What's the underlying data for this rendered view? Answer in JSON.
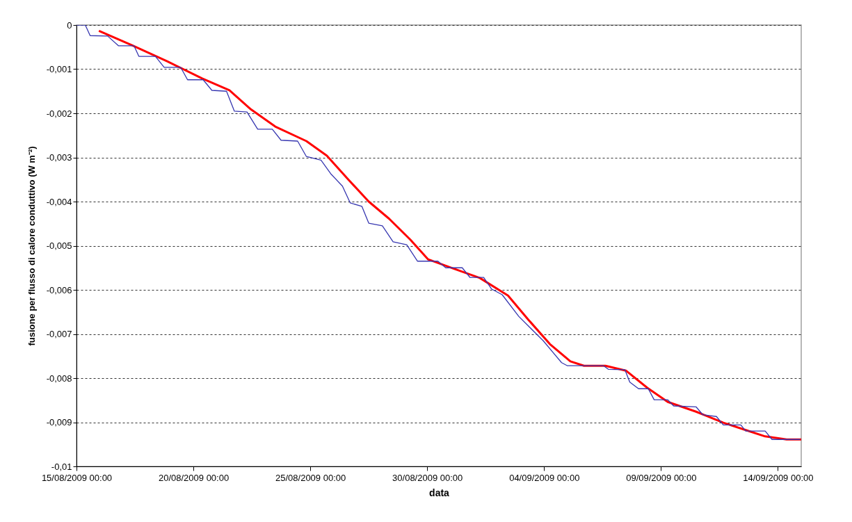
{
  "chart_data": {
    "type": "line",
    "xlabel": "data",
    "ylabel": "fusione per flusso di calore conduttivo (W m⁻²)",
    "grid": "y",
    "marker": "none",
    "line_style": "solid",
    "xlim": [
      "2009-08-15T00:00",
      "2009-09-15T00:00"
    ],
    "xticks": [
      {
        "value": "2009-08-15T00:00",
        "label": "15/08/2009 00:00"
      },
      {
        "value": "2009-08-20T00:00",
        "label": "20/08/2009 00:00"
      },
      {
        "value": "2009-08-25T00:00",
        "label": "25/08/2009 00:00"
      },
      {
        "value": "2009-08-30T00:00",
        "label": "30/08/2009 00:00"
      },
      {
        "value": "2009-09-04T00:00",
        "label": "04/09/2009 00:00"
      },
      {
        "value": "2009-09-09T00:00",
        "label": "09/09/2009 00:00"
      },
      {
        "value": "2009-09-14T00:00",
        "label": "14/09/2009 00:00"
      }
    ],
    "ylim": [
      -0.01,
      0
    ],
    "yticks": [
      0,
      {
        "value": -0.001,
        "label": "-0,001"
      },
      {
        "value": -0.002,
        "label": "-0,002"
      },
      {
        "value": -0.003,
        "label": "-0,003"
      },
      {
        "value": -0.004,
        "label": "-0,004"
      },
      {
        "value": -0.005,
        "label": "-0,005"
      },
      {
        "value": -0.006,
        "label": "-0,006"
      },
      {
        "value": -0.007,
        "label": "-0,007"
      },
      {
        "value": -0.008,
        "label": "-0,008"
      },
      {
        "value": -0.009,
        "label": "-0,009"
      },
      {
        "value": -0.01,
        "label": "-0,01"
      }
    ],
    "series": [
      {
        "color": "#3636b0",
        "x": [
          "2009-08-15T00:00",
          "2009-08-15T09:00",
          "2009-08-15T14:00",
          "2009-08-16T08:00",
          "2009-08-16T19:00",
          "2009-08-17T11:00",
          "2009-08-17T16:00",
          "2009-08-18T09:00",
          "2009-08-18T18:00",
          "2009-08-19T11:00",
          "2009-08-19T18:00",
          "2009-08-20T10:00",
          "2009-08-20T19:00",
          "2009-08-21T10:00",
          "2009-08-21T18:00",
          "2009-08-22T07:00",
          "2009-08-22T18:00",
          "2009-08-23T09:00",
          "2009-08-23T18:00",
          "2009-08-24T11:00",
          "2009-08-24T20:00",
          "2009-08-25T11:00",
          "2009-08-25T21:00",
          "2009-08-26T09:00",
          "2009-08-26T17:00",
          "2009-08-27T05:00",
          "2009-08-27T12:00",
          "2009-08-28T02:00",
          "2009-08-28T13:00",
          "2009-08-29T03:00",
          "2009-08-29T14:00",
          "2009-08-30T11:00",
          "2009-08-30T19:00",
          "2009-08-31T12:00",
          "2009-08-31T20:00",
          "2009-09-01T10:00",
          "2009-09-01T18:00",
          "2009-09-02T05:00",
          "2009-09-02T22:00",
          "2009-09-03T23:00",
          "2009-09-04T18:00",
          "2009-09-05T00:00",
          "2009-09-06T13:00",
          "2009-09-06T18:00",
          "2009-09-07T11:00",
          "2009-09-07T16:00",
          "2009-09-08T01:00",
          "2009-09-08T11:00",
          "2009-09-08T17:00",
          "2009-09-09T07:00",
          "2009-09-09T13:00",
          "2009-09-10T12:00",
          "2009-09-10T19:00",
          "2009-09-11T09:00",
          "2009-09-11T16:00",
          "2009-09-12T10:00",
          "2009-09-12T15:00",
          "2009-09-13T11:00",
          "2009-09-13T18:00",
          "2009-09-14T09:00",
          "2009-09-14T23:00"
        ],
        "values": [
          0,
          0,
          -0.00024,
          -0.00025,
          -0.00047,
          -0.00047,
          -0.00071,
          -0.00071,
          -0.00096,
          -0.00096,
          -0.00124,
          -0.00124,
          -0.00148,
          -0.0015,
          -0.00195,
          -0.00197,
          -0.00236,
          -0.00236,
          -0.00261,
          -0.00263,
          -0.00298,
          -0.00306,
          -0.00337,
          -0.00365,
          -0.00403,
          -0.00411,
          -0.00449,
          -0.00455,
          -0.00491,
          -0.00498,
          -0.00535,
          -0.00535,
          -0.0055,
          -0.0055,
          -0.00572,
          -0.00572,
          -0.00598,
          -0.00611,
          -0.0066,
          -0.00715,
          -0.00765,
          -0.00772,
          -0.00772,
          -0.0078,
          -0.00781,
          -0.00809,
          -0.00824,
          -0.00824,
          -0.00849,
          -0.00849,
          -0.00863,
          -0.00865,
          -0.00883,
          -0.00887,
          -0.00906,
          -0.00906,
          -0.0092,
          -0.0092,
          -0.00939,
          -0.00939,
          -0.00939
        ]
      },
      {
        "color": "#ff0000",
        "x": [
          "2009-08-15T23:00",
          "2009-08-17T09:00",
          "2009-08-18T21:00",
          "2009-08-20T09:00",
          "2009-08-21T13:00",
          "2009-08-22T11:00",
          "2009-08-23T12:00",
          "2009-08-24T20:00",
          "2009-08-25T17:00",
          "2009-08-26T15:00",
          "2009-08-27T12:00",
          "2009-08-28T09:00",
          "2009-08-29T07:00",
          "2009-08-30T01:00",
          "2009-08-31T02:00",
          "2009-09-01T06:00",
          "2009-09-02T11:00",
          "2009-09-03T08:00",
          "2009-09-04T06:00",
          "2009-09-05T03:00",
          "2009-09-05T17:00",
          "2009-09-06T15:00",
          "2009-09-07T12:00",
          "2009-09-08T10:00",
          "2009-09-09T07:00",
          "2009-09-10T12:00",
          "2009-09-11T16:00",
          "2009-09-12T14:00",
          "2009-09-13T11:00",
          "2009-09-14T09:00",
          "2009-09-15T00:00"
        ],
        "values": [
          -0.00013,
          -0.00046,
          -0.00082,
          -0.00121,
          -0.00148,
          -0.00191,
          -0.0023,
          -0.00263,
          -0.00296,
          -0.0035,
          -0.004,
          -0.00439,
          -0.00487,
          -0.00531,
          -0.00551,
          -0.00573,
          -0.00613,
          -0.00668,
          -0.00723,
          -0.00762,
          -0.00772,
          -0.00772,
          -0.00783,
          -0.00822,
          -0.00854,
          -0.00876,
          -0.00901,
          -0.00917,
          -0.00932,
          -0.00939,
          -0.00939
        ]
      }
    ]
  }
}
